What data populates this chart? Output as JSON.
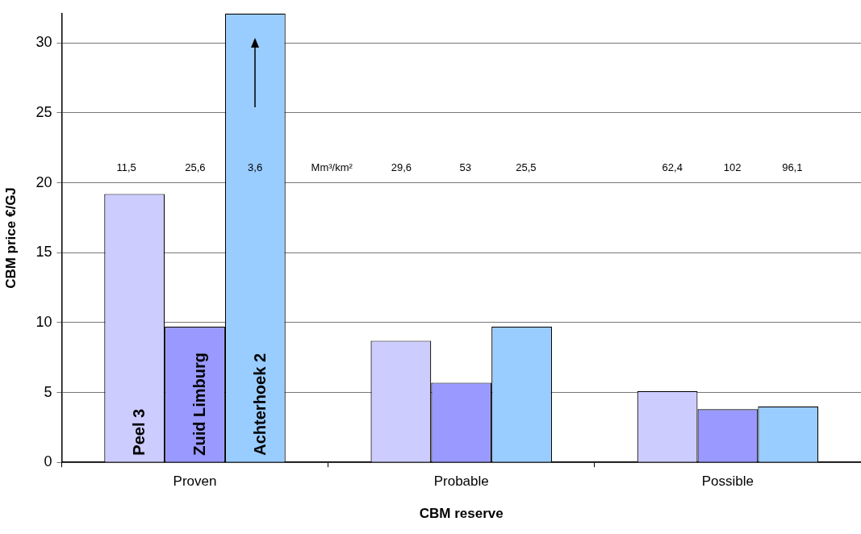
{
  "chart_data": {
    "type": "bar",
    "xlabel": "CBM reserve",
    "ylabel": "CBM price €/GJ",
    "categories": [
      "Proven",
      "Probable",
      "Possible"
    ],
    "series": [
      {
        "name": "Peel 3",
        "color": "#ccccff",
        "values": [
          19.2,
          8.7,
          5.1
        ]
      },
      {
        "name": "Zuid Limburg",
        "color": "#9999ff",
        "values": [
          9.7,
          5.7,
          3.8
        ]
      },
      {
        "name": "Achterhoek 2",
        "color": "#99ccff",
        "values": [
          32.1,
          9.7,
          4.0
        ]
      }
    ],
    "ylim": [
      0,
      32.1
    ],
    "yticks": [
      0,
      5,
      10,
      15,
      20,
      25,
      30
    ],
    "grid": "y",
    "legend": false,
    "annotations": [
      "11,5",
      "25,6",
      "3,6",
      "Mm³/km²",
      "29,6",
      "53",
      "25,5",
      "62,4",
      "102",
      "96,1"
    ]
  }
}
